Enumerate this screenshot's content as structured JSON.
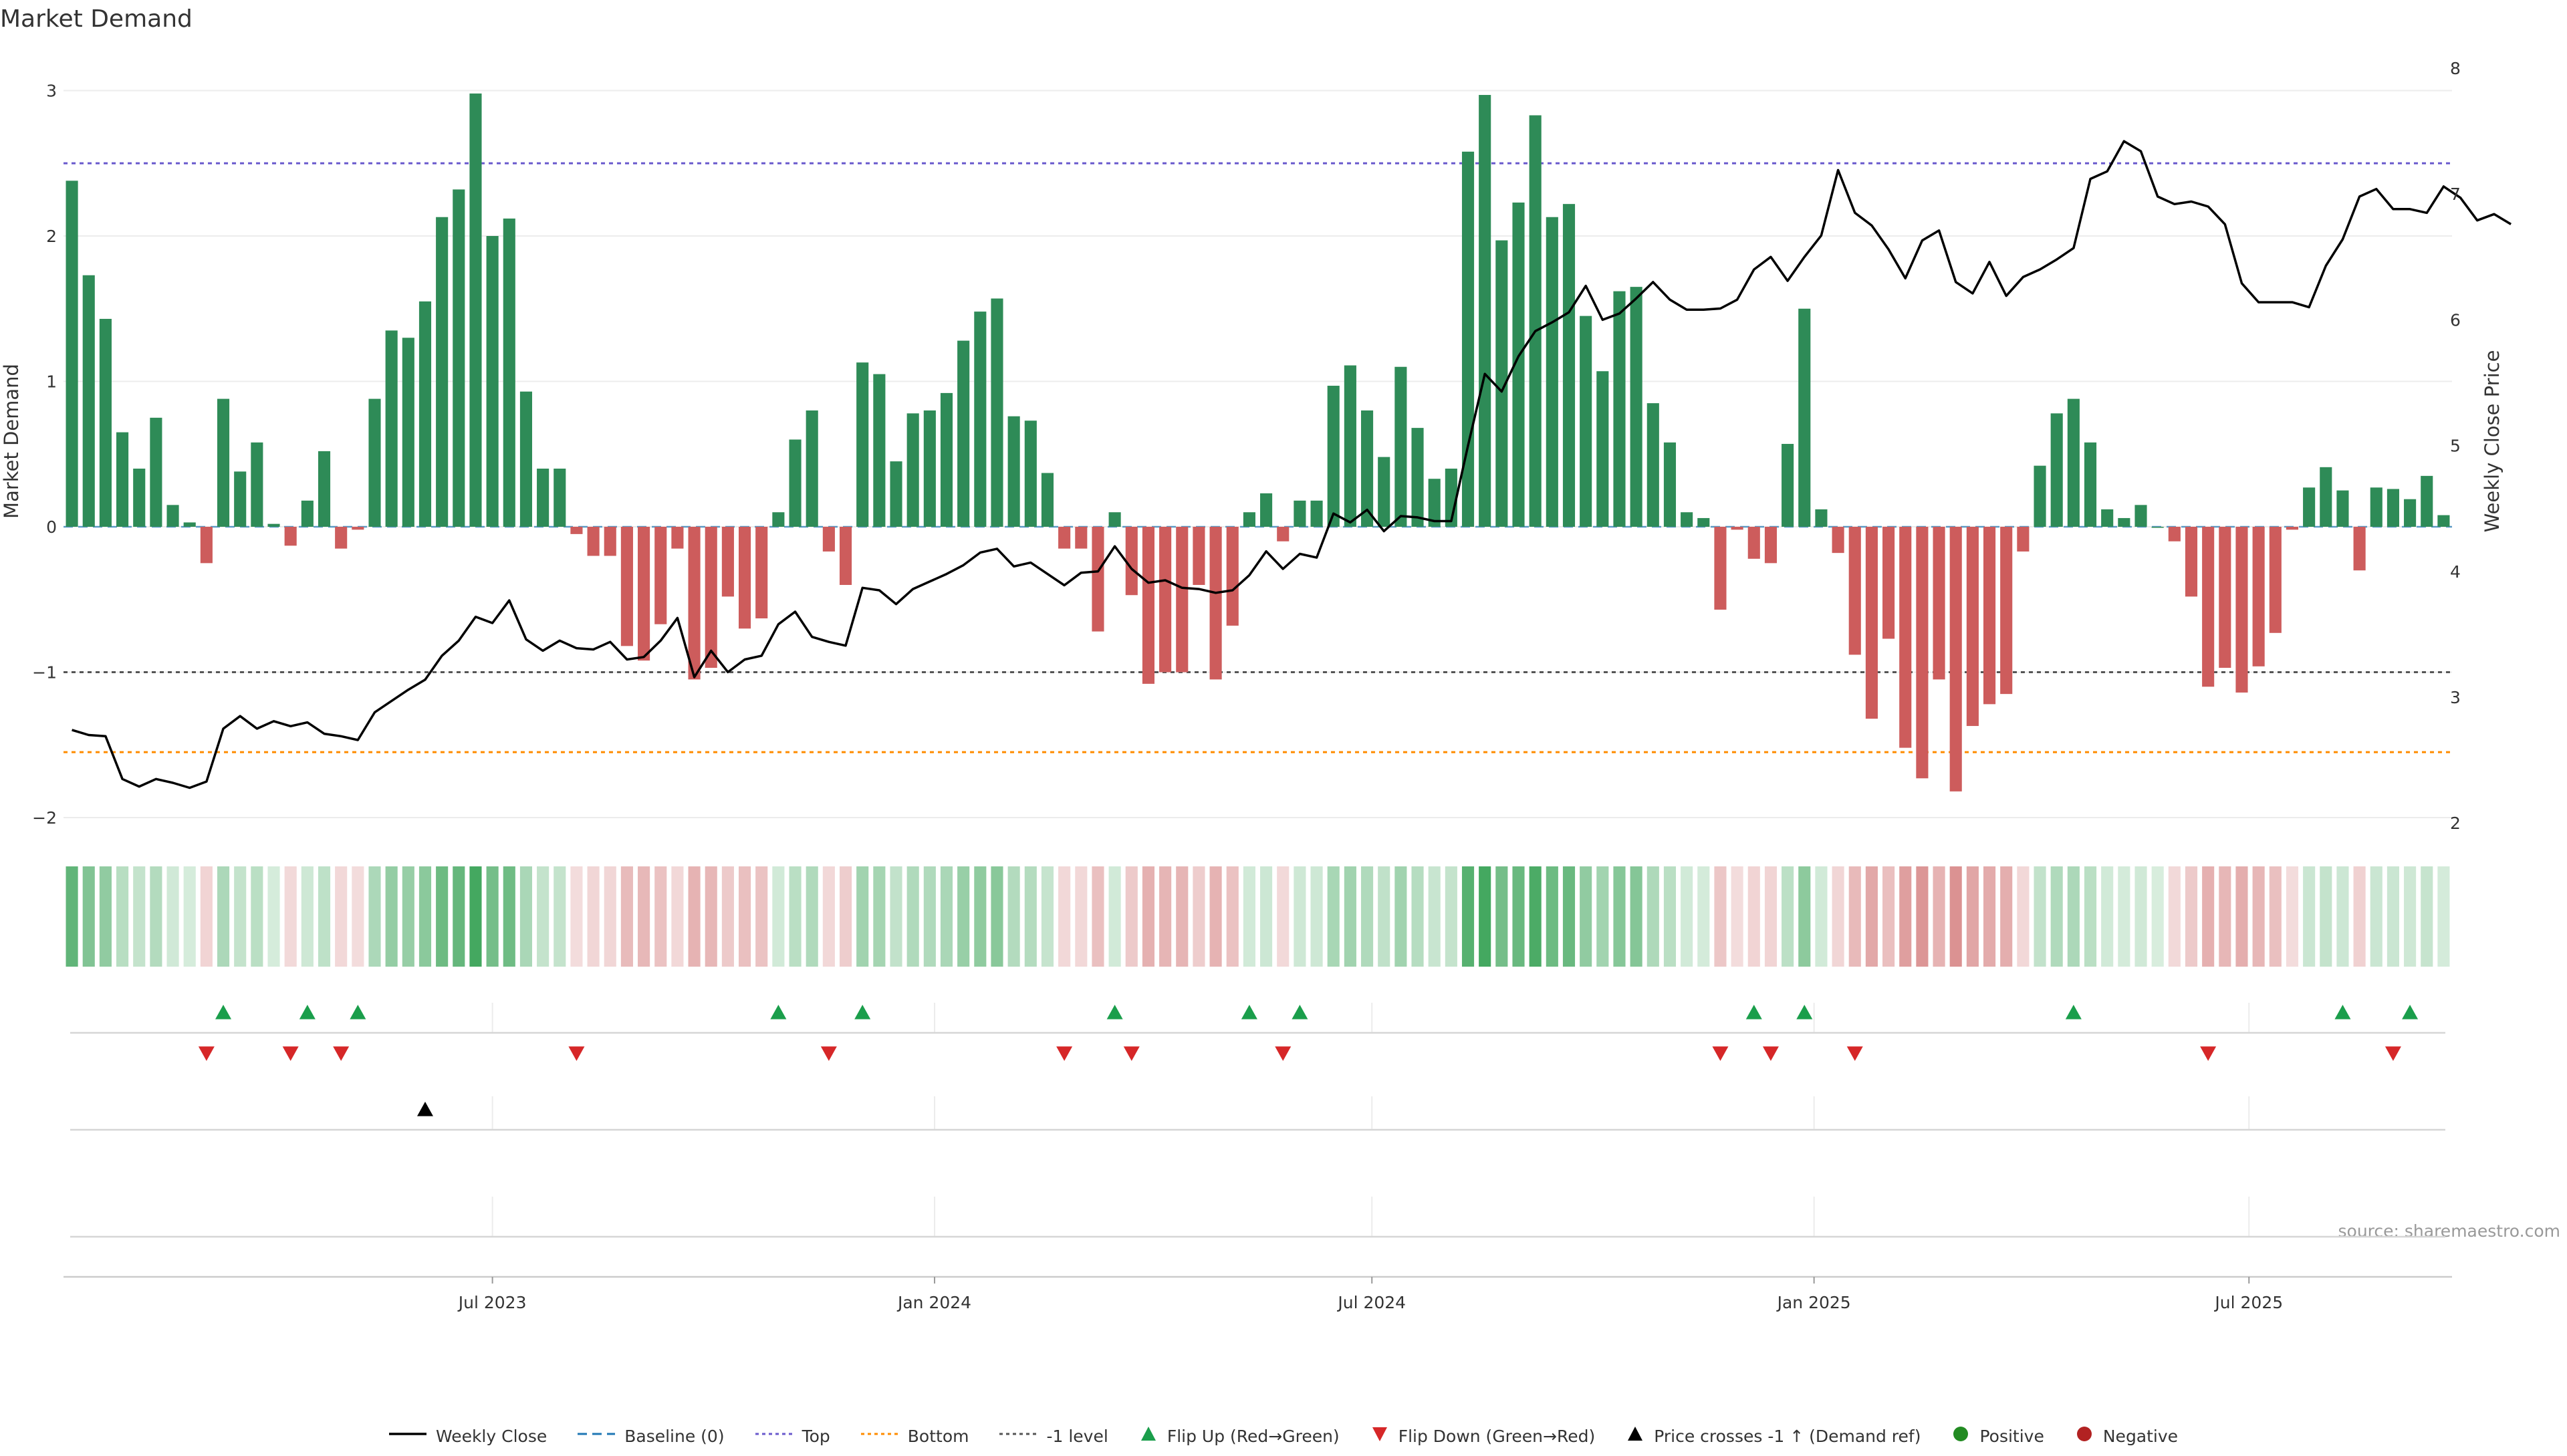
{
  "chart_data": {
    "type": "bar",
    "title": "Market Demand",
    "ylabel": "Market Demand",
    "y2label": "Weekly Close Price",
    "ylim": [
      -2.0,
      3.0
    ],
    "y2lim": [
      2.0,
      8.0
    ],
    "yticks": [
      -2,
      -1,
      0,
      1,
      2,
      3
    ],
    "y2ticks": [
      2,
      3,
      4,
      5,
      6,
      7,
      8
    ],
    "reference_lines": {
      "top": 2.5,
      "bottom": -1.55,
      "minus_one": -1.0,
      "baseline": 0
    },
    "xaxis_type": "weekly dates",
    "x_start": "2023-01-07",
    "x_end": "2025-11-01",
    "xtick_labels": [
      "Jul 2023",
      "Jan 2024",
      "Jul 2024",
      "Jan 2025",
      "Jul 2025"
    ],
    "xtick_dates": [
      "2023-07-01",
      "2024-01-01",
      "2024-07-01",
      "2025-01-01",
      "2025-07-01"
    ],
    "series": [
      {
        "name": "Market Demand",
        "kind": "bar",
        "values": [
          2.38,
          1.73,
          1.43,
          0.65,
          0.4,
          0.75,
          0.15,
          0.03,
          -0.25,
          0.88,
          0.38,
          0.58,
          0.02,
          -0.13,
          0.18,
          0.52,
          -0.15,
          -0.02,
          0.88,
          1.35,
          1.3,
          1.55,
          2.13,
          2.32,
          2.98,
          2.0,
          2.12,
          0.93,
          0.4,
          0.4,
          -0.05,
          -0.2,
          -0.2,
          -0.82,
          -0.92,
          -0.67,
          -0.15,
          -1.05,
          -0.97,
          -0.48,
          -0.7,
          -0.63,
          0.1,
          0.6,
          0.8,
          -0.17,
          -0.4,
          1.13,
          1.05,
          0.45,
          0.78,
          0.8,
          0.92,
          1.28,
          1.48,
          1.57,
          0.76,
          0.73,
          0.37,
          -0.15,
          -0.15,
          -0.72,
          0.1,
          -0.47,
          -1.08,
          -1.0,
          -1.0,
          -0.4,
          -1.05,
          -0.68,
          0.1,
          0.23,
          -0.1,
          0.18,
          0.18,
          0.97,
          1.11,
          0.8,
          0.48,
          1.1,
          0.68,
          0.33,
          0.4,
          2.58,
          2.97,
          1.97,
          2.23,
          2.83,
          2.13,
          2.22,
          1.45,
          1.07,
          1.62,
          1.65,
          0.85,
          0.58,
          0.1,
          0.06,
          -0.57,
          -0.02,
          -0.22,
          -0.25,
          0.57,
          1.5,
          0.12,
          -0.18,
          -0.88,
          -1.32,
          -0.77,
          -1.52,
          -1.73,
          -1.05,
          -1.82,
          -1.37,
          -1.22,
          -1.15,
          -0.17,
          0.42,
          0.78,
          0.88,
          0.58,
          0.12,
          0.06,
          0.15,
          0.0,
          -0.1,
          -0.48,
          -1.1,
          -0.97,
          -1.14,
          -0.96,
          -0.73,
          -0.02,
          0.27,
          0.41,
          0.25,
          -0.3,
          0.27,
          0.26,
          0.19,
          0.35,
          0.08
        ]
      },
      {
        "name": "Weekly Close",
        "kind": "line",
        "values": [
          2.74,
          2.7,
          2.69,
          2.35,
          2.29,
          2.35,
          2.32,
          2.28,
          2.33,
          2.75,
          2.85,
          2.75,
          2.81,
          2.77,
          2.8,
          2.71,
          2.69,
          2.66,
          2.88,
          2.97,
          3.06,
          3.14,
          3.33,
          3.45,
          3.64,
          3.59,
          3.77,
          3.46,
          3.37,
          3.45,
          3.39,
          3.38,
          3.44,
          3.3,
          3.32,
          3.45,
          3.63,
          3.16,
          3.37,
          3.2,
          3.3,
          3.33,
          3.58,
          3.68,
          3.48,
          3.44,
          3.41,
          3.87,
          3.85,
          3.74,
          3.86,
          3.92,
          3.98,
          4.05,
          4.15,
          4.18,
          4.04,
          4.07,
          3.98,
          3.89,
          3.99,
          4.0,
          4.2,
          4.02,
          3.91,
          3.93,
          3.87,
          3.86,
          3.83,
          3.85,
          3.97,
          4.16,
          4.02,
          4.14,
          4.11,
          4.46,
          4.39,
          4.49,
          4.32,
          4.44,
          4.43,
          4.4,
          4.4,
          5.0,
          5.57,
          5.43,
          5.71,
          5.91,
          5.98,
          6.06,
          6.27,
          6.0,
          6.05,
          6.17,
          6.3,
          6.16,
          6.08,
          6.08,
          6.09,
          6.16,
          6.4,
          6.5,
          6.31,
          6.5,
          6.67,
          7.19,
          6.85,
          6.75,
          6.56,
          6.33,
          6.63,
          6.71,
          6.3,
          6.21,
          6.46,
          6.19,
          6.34,
          6.4,
          6.48,
          6.57,
          7.12,
          7.18,
          7.42,
          7.34,
          6.98,
          6.92,
          6.94,
          6.9,
          6.76,
          6.29,
          6.14,
          6.14,
          6.14,
          6.1,
          6.43,
          6.64,
          6.98,
          7.04,
          6.88,
          6.88,
          6.85,
          7.06,
          6.97,
          6.79,
          6.84,
          6.76
        ]
      }
    ],
    "heat_strip": {
      "name": "Demand intensity",
      "positive_color": "#3aa357",
      "negative_color": "#c85a5a"
    },
    "flip_up_indices": [
      9,
      14,
      17,
      42,
      47,
      62,
      70,
      73,
      100,
      103,
      119,
      135,
      139
    ],
    "flip_down_indices": [
      8,
      13,
      16,
      30,
      45,
      59,
      63,
      72,
      98,
      101,
      106,
      127,
      138
    ],
    "price_cross_indices": [
      21
    ],
    "source_note": "source: sharemaestro.com",
    "colors": {
      "positive_bar": "#2e8b57",
      "negative_bar": "#cd5c5c",
      "price_line": "#000000",
      "top_line": "#6a5acd",
      "bottom_line": "#ff8c00",
      "minus_one_line": "#555555",
      "baseline": "#1f77b4",
      "flip_up": "#1a9e4b",
      "flip_down": "#d62728",
      "positive_dot": "#228b22",
      "negative_dot": "#b22222",
      "grid": "#ececec",
      "axis_text": "#333333"
    }
  },
  "legend": [
    {
      "key": "weekly-close",
      "label": "Weekly Close"
    },
    {
      "key": "baseline",
      "label": "Baseline (0)"
    },
    {
      "key": "top",
      "label": "Top"
    },
    {
      "key": "bottom",
      "label": "Bottom"
    },
    {
      "key": "minus-one",
      "label": "-1 level"
    },
    {
      "key": "flip-up",
      "label": "Flip Up (Red→Green)"
    },
    {
      "key": "flip-down",
      "label": "Flip Down (Green→Red)"
    },
    {
      "key": "price-cross",
      "label": "Price crosses -1 ↑ (Demand ref)"
    },
    {
      "key": "positive",
      "label": "Positive"
    },
    {
      "key": "negative",
      "label": "Negative"
    }
  ]
}
